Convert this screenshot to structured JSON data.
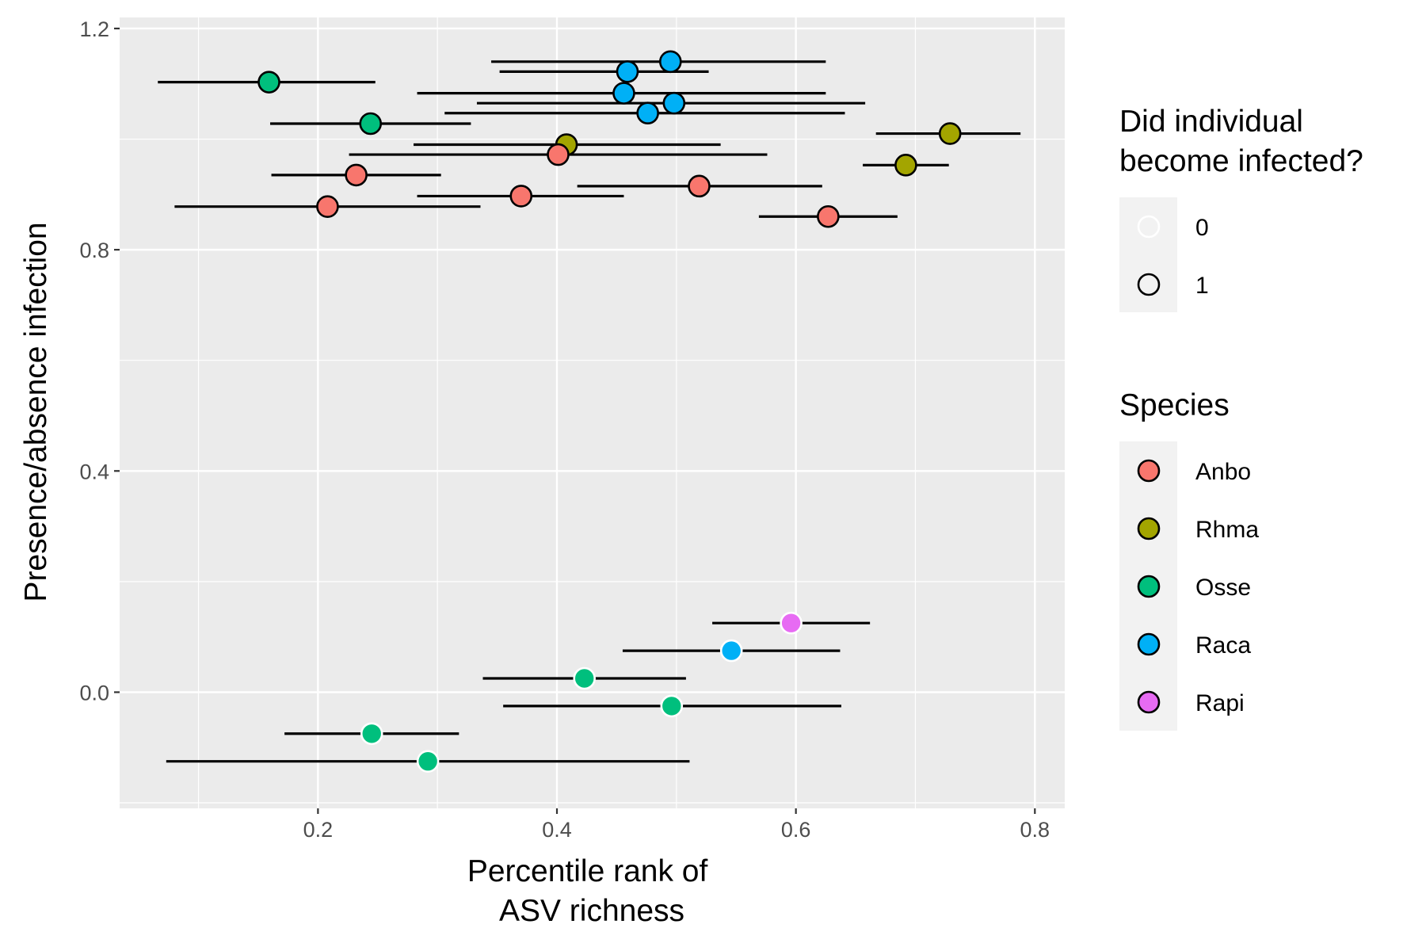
{
  "chart_data": {
    "type": "scatter",
    "xlabel": [
      "Percentile rank of",
      "ASV richness"
    ],
    "ylabel": "Presence/absence infection",
    "xlim": [
      0.034,
      0.825
    ],
    "ylim": [
      -0.21,
      1.22
    ],
    "x_ticks": [
      0.2,
      0.4,
      0.6,
      0.8
    ],
    "x_tick_labels": [
      "0.2",
      "0.4",
      "0.6",
      "0.8"
    ],
    "y_ticks": [
      0.0,
      0.4,
      0.8,
      1.2
    ],
    "y_tick_labels": [
      "0.0",
      "0.4",
      "0.8",
      "1.2"
    ],
    "grid": true,
    "background": "#ebebeb",
    "legend_position": "right",
    "legends": [
      {
        "title": [
          "Did individual",
          "become infected?"
        ],
        "key": "infected",
        "entries": [
          {
            "label": "0",
            "value": 0
          },
          {
            "label": "1",
            "value": 1
          }
        ]
      },
      {
        "title": [
          "Species"
        ],
        "key": "species",
        "entries": [
          {
            "label": "Anbo",
            "color": "#F8766D"
          },
          {
            "label": "Rhma",
            "color": "#A3A500"
          },
          {
            "label": "Osse",
            "color": "#00BF7D"
          },
          {
            "label": "Raca",
            "color": "#00B0F6"
          },
          {
            "label": "Rapi",
            "color": "#E76BF3"
          }
        ]
      }
    ],
    "points": [
      {
        "species": "Raca",
        "infected": 1,
        "x": 0.495,
        "y": 1.14,
        "xmin": 0.345,
        "xmax": 0.625
      },
      {
        "species": "Raca",
        "infected": 1,
        "x": 0.459,
        "y": 1.122,
        "xmin": 0.352,
        "xmax": 0.527
      },
      {
        "species": "Osse",
        "infected": 1,
        "x": 0.159,
        "y": 1.103,
        "xmin": 0.066,
        "xmax": 0.248
      },
      {
        "species": "Raca",
        "infected": 1,
        "x": 0.456,
        "y": 1.083,
        "xmin": 0.283,
        "xmax": 0.625
      },
      {
        "species": "Raca",
        "infected": 1,
        "x": 0.498,
        "y": 1.065,
        "xmin": 0.333,
        "xmax": 0.658
      },
      {
        "species": "Raca",
        "infected": 1,
        "x": 0.476,
        "y": 1.047,
        "xmin": 0.306,
        "xmax": 0.641
      },
      {
        "species": "Osse",
        "infected": 1,
        "x": 0.244,
        "y": 1.028,
        "xmin": 0.16,
        "xmax": 0.328
      },
      {
        "species": "Rhma",
        "infected": 1,
        "x": 0.729,
        "y": 1.01,
        "xmin": 0.667,
        "xmax": 0.788
      },
      {
        "species": "Rhma",
        "infected": 1,
        "x": 0.408,
        "y": 0.99,
        "xmin": 0.28,
        "xmax": 0.537
      },
      {
        "species": "Anbo",
        "infected": 1,
        "x": 0.401,
        "y": 0.972,
        "xmin": 0.226,
        "xmax": 0.576
      },
      {
        "species": "Rhma",
        "infected": 1,
        "x": 0.692,
        "y": 0.953,
        "xmin": 0.656,
        "xmax": 0.728
      },
      {
        "species": "Anbo",
        "infected": 1,
        "x": 0.232,
        "y": 0.935,
        "xmin": 0.161,
        "xmax": 0.303
      },
      {
        "species": "Anbo",
        "infected": 1,
        "x": 0.519,
        "y": 0.915,
        "xmin": 0.417,
        "xmax": 0.622
      },
      {
        "species": "Anbo",
        "infected": 1,
        "x": 0.37,
        "y": 0.897,
        "xmin": 0.283,
        "xmax": 0.456
      },
      {
        "species": "Anbo",
        "infected": 1,
        "x": 0.208,
        "y": 0.878,
        "xmin": 0.08,
        "xmax": 0.336
      },
      {
        "species": "Anbo",
        "infected": 1,
        "x": 0.627,
        "y": 0.86,
        "xmin": 0.569,
        "xmax": 0.685
      },
      {
        "species": "Rapi",
        "infected": 0,
        "x": 0.596,
        "y": 0.125,
        "xmin": 0.53,
        "xmax": 0.662
      },
      {
        "species": "Raca",
        "infected": 0,
        "x": 0.546,
        "y": 0.075,
        "xmin": 0.455,
        "xmax": 0.637
      },
      {
        "species": "Osse",
        "infected": 0,
        "x": 0.423,
        "y": 0.025,
        "xmin": 0.338,
        "xmax": 0.508
      },
      {
        "species": "Osse",
        "infected": 0,
        "x": 0.496,
        "y": -0.025,
        "xmin": 0.355,
        "xmax": 0.638
      },
      {
        "species": "Osse",
        "infected": 0,
        "x": 0.245,
        "y": -0.075,
        "xmin": 0.172,
        "xmax": 0.318
      },
      {
        "species": "Osse",
        "infected": 0,
        "x": 0.292,
        "y": -0.125,
        "xmin": 0.073,
        "xmax": 0.511
      }
    ]
  }
}
